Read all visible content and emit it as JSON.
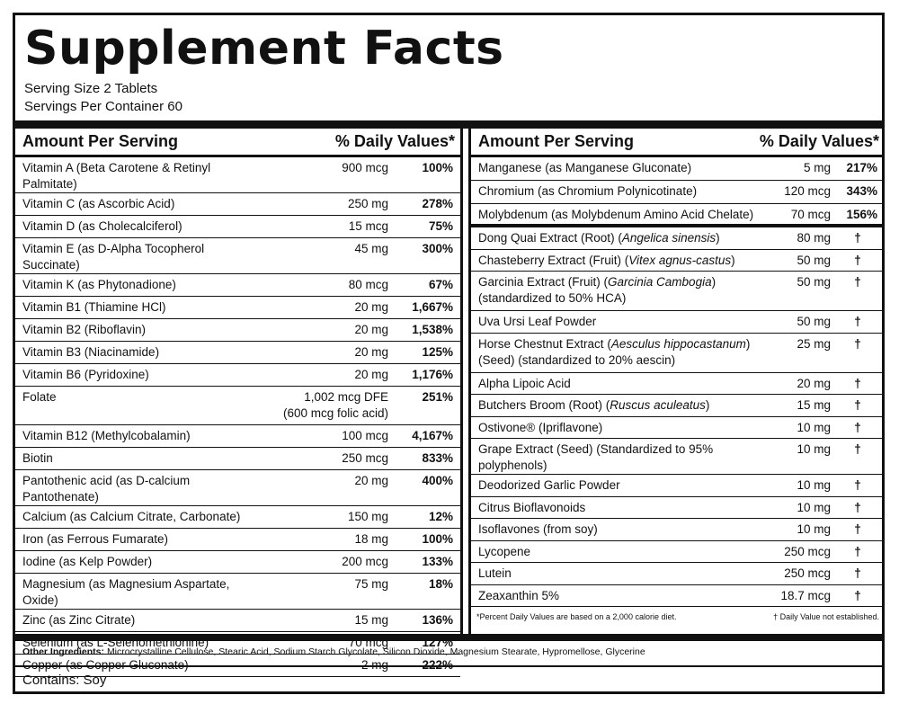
{
  "title": "Supplement Facts",
  "serving_size": "Serving Size 2 Tablets",
  "servings_per_container": "Servings Per Container 60",
  "left_header": {
    "amount": "Amount Per Serving",
    "dv": "% Daily Values*"
  },
  "right_header": {
    "amount": "Amount Per Serving",
    "dv": "% Daily Values*"
  },
  "left_rows": [
    {
      "name": "Vitamin A (Beta Carotene & Retinyl Palmitate)",
      "amount": "900 mcg",
      "dv": "100%"
    },
    {
      "name": "Vitamin C (as Ascorbic Acid)",
      "amount": "250 mg",
      "dv": "278%"
    },
    {
      "name": "Vitamin D (as Cholecalciferol)",
      "amount": "15 mcg",
      "dv": "75%"
    },
    {
      "name": "Vitamin E (as D-Alpha Tocopherol Succinate)",
      "amount": "45 mg",
      "dv": "300%"
    },
    {
      "name": "Vitamin K (as Phytonadione)",
      "amount": "80 mcg",
      "dv": "67%"
    },
    {
      "name": "Vitamin B1 (Thiamine HCl)",
      "amount": "20 mg",
      "dv": "1,667%"
    },
    {
      "name": "Vitamin B2 (Riboflavin)",
      "amount": "20 mg",
      "dv": "1,538%"
    },
    {
      "name": "Vitamin B3 (Niacinamide)",
      "amount": "20 mg",
      "dv": "125%"
    },
    {
      "name": "Vitamin B6 (Pyridoxine)",
      "amount": "20 mg",
      "dv": "1,176%"
    },
    {
      "name": "Folate",
      "amount": "1,002 mcg DFE",
      "amount2": "(600 mcg folic acid)",
      "dv": "251%"
    },
    {
      "name": "Vitamin B12 (Methylcobalamin)",
      "amount": "100 mcg",
      "dv": "4,167%"
    },
    {
      "name": "Biotin",
      "amount": "250 mcg",
      "dv": "833%"
    },
    {
      "name": "Pantothenic acid (as D-calcium Pantothenate)",
      "amount": "20 mg",
      "dv": "400%"
    },
    {
      "name": "Calcium (as Calcium Citrate, Carbonate)",
      "amount": "150 mg",
      "dv": "12%"
    },
    {
      "name": "Iron (as Ferrous Fumarate)",
      "amount": "18 mg",
      "dv": "100%"
    },
    {
      "name": "Iodine (as Kelp Powder)",
      "amount": "200 mcg",
      "dv": "133%"
    },
    {
      "name": "Magnesium (as Magnesium Aspartate, Oxide)",
      "amount": "75 mg",
      "dv": "18%"
    },
    {
      "name": "Zinc (as Zinc Citrate)",
      "amount": "15 mg",
      "dv": "136%"
    },
    {
      "name": "Selenium (as L-Selenomethionine)",
      "amount": "70 mcg",
      "dv": "127%"
    },
    {
      "name": "Copper (as Copper Gluconate)",
      "amount": "2 mg",
      "dv": "222%"
    }
  ],
  "right_rows_top": [
    {
      "name": "Manganese (as Manganese Gluconate)",
      "amount": "5 mg",
      "dv": "217%"
    },
    {
      "name": "Chromium (as Chromium Polynicotinate)",
      "amount": "120 mcg",
      "dv": "343%"
    },
    {
      "name": "Molybdenum (as Molybdenum Amino Acid Chelate)",
      "amount": "70 mcg",
      "dv": "156%"
    }
  ],
  "right_rows_bottom": [
    {
      "name": "Dong Quai Extract (Root) ",
      "italic": "Angelica sinensis",
      "amount": "80 mg",
      "dv": "†"
    },
    {
      "name": "Chasteberry Extract (Fruit) ",
      "italic": "Vitex agnus-castus",
      "amount": "50 mg",
      "dv": "†"
    },
    {
      "name": "Garcinia Extract (Fruit) ",
      "italic": "Garcinia Cambogia",
      "line2": "(standardized to 50% HCA)",
      "amount": "50 mg",
      "dv": "†"
    },
    {
      "name": "Uva Ursi Leaf Powder",
      "amount": "50 mg",
      "dv": "†"
    },
    {
      "name": "Horse Chestnut Extract ",
      "italic": "Aesculus hippocastanum",
      "line2": "(Seed) (standardized to 20% aescin)",
      "amount": "25 mg",
      "dv": "†"
    },
    {
      "name": "Alpha Lipoic Acid",
      "amount": "20 mg",
      "dv": "†"
    },
    {
      "name": "Butchers Broom (Root) ",
      "italic": "Ruscus aculeatus",
      "amount": "15 mg",
      "dv": "†"
    },
    {
      "name": "Ostivone® (Ipriflavone)",
      "amount": "10 mg",
      "dv": "†"
    },
    {
      "name": "Grape Extract (Seed) (Standardized to 95% polyphenols)",
      "amount": "10 mg",
      "dv": "†"
    },
    {
      "name": "Deodorized Garlic Powder",
      "amount": "10 mg",
      "dv": "†"
    },
    {
      "name": "Citrus Bioflavonoids",
      "amount": "10 mg",
      "dv": "†"
    },
    {
      "name": "Isoflavones (from soy)",
      "amount": "10 mg",
      "dv": "†"
    },
    {
      "name": "Lycopene",
      "amount": "250 mcg",
      "dv": "†"
    },
    {
      "name": "Lutein",
      "amount": "250 mcg",
      "dv": "†"
    },
    {
      "name": "Zeaxanthin 5%",
      "amount": "18.7 mcg",
      "dv": "†"
    }
  ],
  "footnote_left": "*Percent Daily Values are based on a 2,000 calorie diet.",
  "footnote_right": "† Daily Value not established.",
  "other_ingredients_label": "Other Ingredients:",
  "other_ingredients": "Microcrystalline Cellulose, Stearic Acid, Sodium Starch Glycolate, Silicon Dioxide, Magnesium Stearate, Hypromellose, Glycerine",
  "contains": "Contains: Soy"
}
